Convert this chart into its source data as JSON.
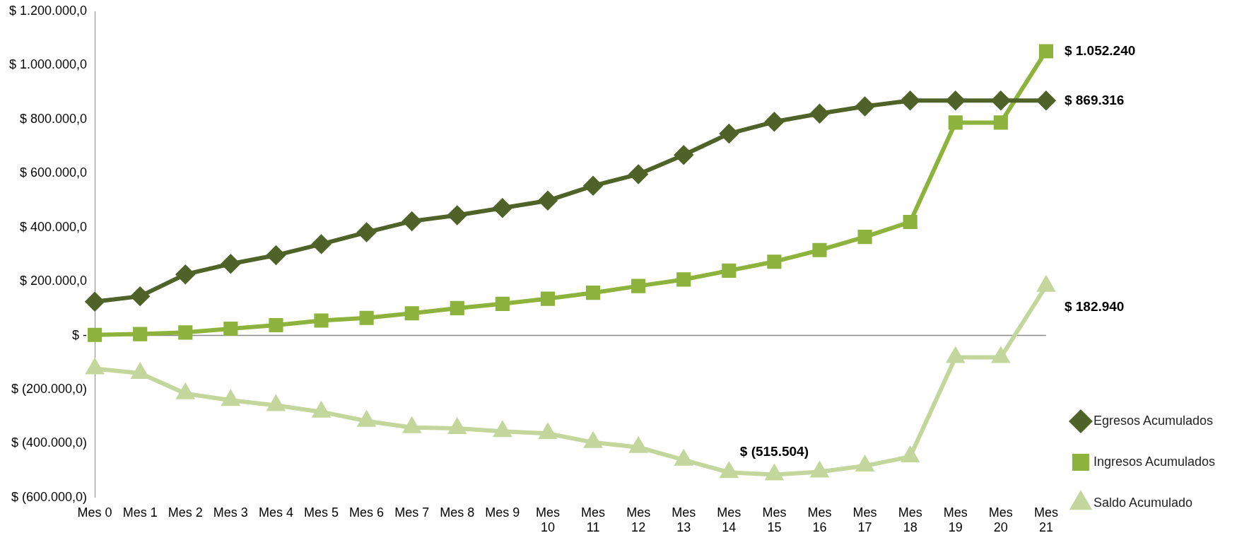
{
  "chart_data": {
    "type": "line",
    "categories": [
      "Mes 0",
      "Mes 1",
      "Mes 2",
      "Mes 3",
      "Mes 4",
      "Mes 5",
      "Mes 6",
      "Mes 7",
      "Mes 8",
      "Mes 9",
      "Mes 10",
      "Mes 11",
      "Mes 12",
      "Mes 13",
      "Mes 14",
      "Mes 15",
      "Mes 16",
      "Mes 17",
      "Mes 18",
      "Mes 19",
      "Mes 20",
      "Mes 21"
    ],
    "ylim": [
      -600000,
      1200000
    ],
    "yticks": [
      {
        "value": -600000,
        "label": "$ (600.000,0)"
      },
      {
        "value": -400000,
        "label": "$ (400.000,0)"
      },
      {
        "value": -200000,
        "label": "$ (200.000,0)"
      },
      {
        "value": 0,
        "label": "$ -"
      },
      {
        "value": 200000,
        "label": "$ 200.000,0"
      },
      {
        "value": 400000,
        "label": "$ 400.000,0"
      },
      {
        "value": 600000,
        "label": "$ 600.000,0"
      },
      {
        "value": 800000,
        "label": "$ 800.000,0"
      },
      {
        "value": 1000000,
        "label": "$ 1.000.000,0"
      },
      {
        "value": 1200000,
        "label": "$ 1.200.000,0"
      }
    ],
    "grid": false,
    "legend": "right",
    "ref_lines": [
      {
        "axis": "y",
        "value": 0,
        "color": "#888888"
      }
    ],
    "line_style": "solid",
    "series": [
      {
        "name": "Egresos Acumulados",
        "color": "#4f6228",
        "marker": "diamond",
        "values": [
          125000,
          145000,
          226000,
          265000,
          297000,
          338000,
          382000,
          423000,
          445000,
          472000,
          499000,
          554000,
          597000,
          668000,
          747000,
          791000,
          821000,
          848000,
          869316,
          869316,
          869316,
          869316
        ],
        "value_labels": [
          null,
          null,
          null,
          null,
          null,
          null,
          null,
          null,
          null,
          null,
          null,
          null,
          null,
          null,
          null,
          null,
          null,
          null,
          null,
          null,
          null,
          "$ 869.316"
        ]
      },
      {
        "name": "Ingresos Acumulados",
        "color": "#8db33c",
        "marker": "square",
        "values": [
          2000,
          5000,
          11000,
          25000,
          38000,
          55000,
          65000,
          82000,
          101000,
          117000,
          136000,
          158000,
          183000,
          207000,
          240000,
          273000,
          316000,
          365000,
          420000,
          788000,
          788000,
          1052240
        ],
        "value_labels": [
          null,
          null,
          null,
          null,
          null,
          null,
          null,
          null,
          null,
          null,
          null,
          null,
          null,
          null,
          null,
          null,
          null,
          null,
          null,
          null,
          null,
          "$ 1.052.240"
        ]
      },
      {
        "name": "Saldo Acumulado",
        "color": "#c3d69b",
        "marker": "triangle",
        "values": [
          -123000,
          -140000,
          -215000,
          -240000,
          -259000,
          -283000,
          -317000,
          -341000,
          -344000,
          -355000,
          -363000,
          -396000,
          -414000,
          -461000,
          -507000,
          -515504,
          -505000,
          -483000,
          -449000,
          -81000,
          -81000,
          182940
        ],
        "value_labels": [
          null,
          null,
          null,
          null,
          null,
          null,
          null,
          null,
          null,
          null,
          null,
          null,
          null,
          null,
          null,
          "$ (515.504)",
          null,
          null,
          null,
          null,
          null,
          "$ 182.940"
        ]
      }
    ]
  }
}
